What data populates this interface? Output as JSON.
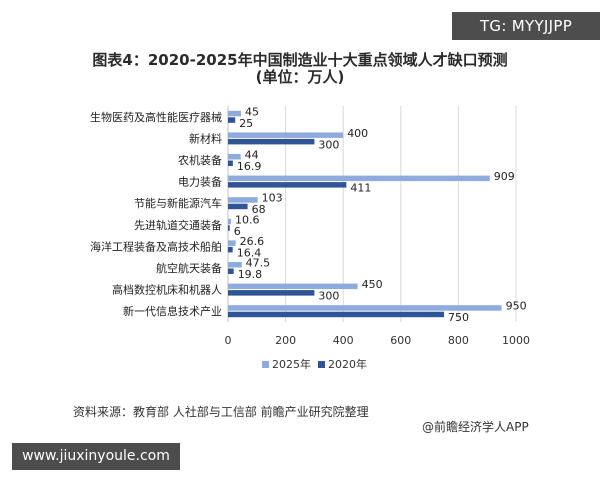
{
  "watermark_badge": "TG: MYYJJPP",
  "url_badge": "www.jiuxinyoule.com",
  "source_note": "资料来源：教育部 人社部与工信部 前瞻产业研究院整理",
  "brand_note": "@前瞻经济学人APP",
  "colors": {
    "series_2025": "#8faadc",
    "series_2020": "#2f5597",
    "grid": "#d9d9d9"
  },
  "chart_data": {
    "type": "bar",
    "orientation": "horizontal",
    "title": "图表4：2020-2025年中国制造业十大重点领域人才缺口预测",
    "subtitle": "(单位：万人)",
    "categories": [
      "生物医药及高性能医疗器械",
      "新材料",
      "农机装备",
      "电力装备",
      "节能与新能源汽车",
      "先进轨道交通装备",
      "海洋工程装备及高技术船舶",
      "航空航天装备",
      "高档数控机床和机器人",
      "新一代信息技术产业"
    ],
    "series": [
      {
        "name": "2025年",
        "values": [
          45,
          400,
          44,
          909,
          103,
          10.6,
          26.6,
          47.5,
          450,
          950
        ],
        "labels": [
          "45",
          "400",
          "44",
          "909",
          "103",
          "10.6",
          "26.6",
          "47.5",
          "450",
          "950"
        ]
      },
      {
        "name": "2020年",
        "values": [
          25,
          300,
          16.9,
          411,
          68,
          6,
          16.4,
          19.8,
          300,
          750
        ],
        "labels": [
          "25",
          "300",
          "16.9",
          "411",
          "68",
          "6",
          "16.4",
          "19.8",
          "300",
          "750"
        ]
      }
    ],
    "xlim": [
      0,
      1000
    ],
    "xticks": [
      "0",
      "200",
      "400",
      "600",
      "800",
      "1000"
    ],
    "grid": true,
    "legend_position": "bottom"
  }
}
